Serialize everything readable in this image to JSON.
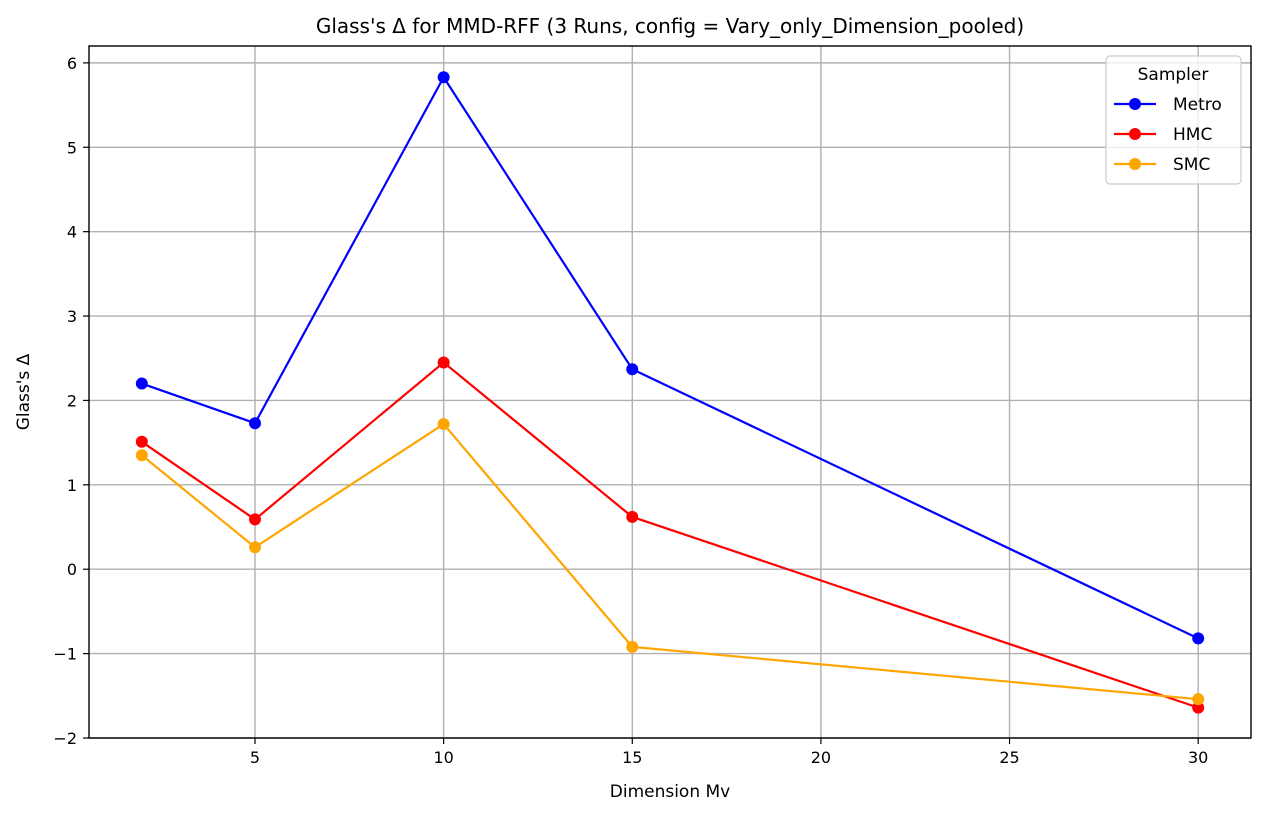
{
  "chart_data": {
    "type": "line",
    "title": "Glass's Δ for MMD-RFF (3 Runs, config = Vary_only_Dimension_pooled)",
    "xlabel": "Dimension Mv",
    "ylabel": "Glass's Δ",
    "xlim": [
      0.6,
      31.4
    ],
    "ylim": [
      -2.0,
      6.2
    ],
    "xticks": [
      5,
      10,
      15,
      20,
      25,
      30
    ],
    "yticks": [
      -2,
      -1,
      0,
      1,
      2,
      3,
      4,
      5,
      6
    ],
    "grid": true,
    "legend": {
      "title": "Sampler",
      "placement": "top-right"
    },
    "x": [
      2,
      5,
      10,
      15,
      30
    ],
    "series": [
      {
        "name": "Metro",
        "color": "#0000ff",
        "values": [
          2.2,
          1.73,
          5.83,
          2.37,
          -0.82
        ]
      },
      {
        "name": "HMC",
        "color": "#ff0000",
        "values": [
          1.51,
          0.59,
          2.45,
          0.62,
          -1.64
        ]
      },
      {
        "name": "SMC",
        "color": "#ffa500",
        "values": [
          1.35,
          0.26,
          1.72,
          -0.92,
          -1.54
        ]
      }
    ]
  }
}
